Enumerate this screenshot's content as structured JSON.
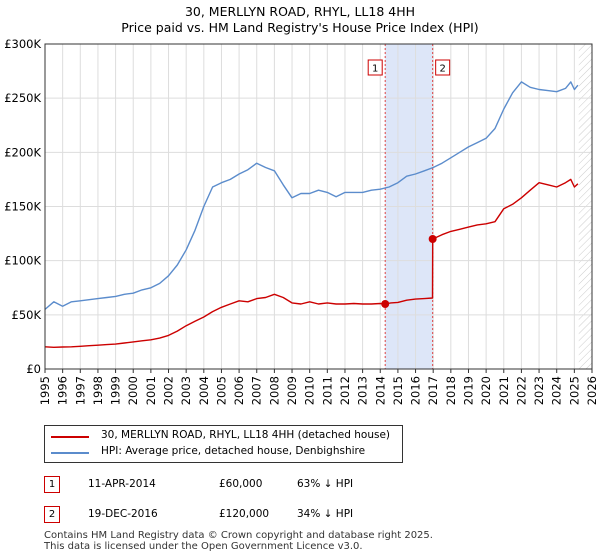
{
  "title_line1": "30, MERLLYN ROAD, RHYL, LL18 4HH",
  "title_line2": "Price paid vs. HM Land Registry's House Price Index (HPI)",
  "colors": {
    "price_paid": "#cc0000",
    "hpi": "#5b8ccc",
    "shade": "#dde6f8",
    "grid": "#dddddd"
  },
  "chart_data": {
    "type": "line",
    "ylabel_ticks": [
      "£0",
      "£50K",
      "£100K",
      "£150K",
      "£200K",
      "£250K",
      "£300K"
    ],
    "yticks": [
      0,
      50000,
      100000,
      150000,
      200000,
      250000,
      300000
    ],
    "ylim": [
      0,
      300000
    ],
    "xlim": [
      1995,
      2026
    ],
    "xticks": [
      "1995",
      "1996",
      "1997",
      "1998",
      "1999",
      "2000",
      "2001",
      "2002",
      "2003",
      "2004",
      "2005",
      "2006",
      "2007",
      "2008",
      "2009",
      "2010",
      "2011",
      "2012",
      "2013",
      "2014",
      "2015",
      "2016",
      "2017",
      "2018",
      "2019",
      "2020",
      "2021",
      "2022",
      "2023",
      "2024",
      "2025",
      "2026"
    ],
    "shaded_region": [
      2014.28,
      2016.97
    ],
    "future_hatch_from": 2025.25,
    "series": [
      {
        "name": "30, MERLLYN ROAD, RHYL, LL18 4HH (detached house)",
        "x": [
          1995.0,
          1995.5,
          1996.0,
          1996.5,
          1997.0,
          1997.5,
          1998.0,
          1998.5,
          1999.0,
          1999.5,
          2000.0,
          2000.5,
          2001.0,
          2001.5,
          2002.0,
          2002.5,
          2003.0,
          2003.5,
          2004.0,
          2004.5,
          2005.0,
          2005.5,
          2006.0,
          2006.5,
          2007.0,
          2007.5,
          2008.0,
          2008.5,
          2009.0,
          2009.5,
          2010.0,
          2010.5,
          2011.0,
          2011.5,
          2012.0,
          2012.5,
          2013.0,
          2013.5,
          2014.0,
          2014.28,
          2014.6,
          2015.0,
          2015.5,
          2016.0,
          2016.5,
          2016.96,
          2016.97,
          2017.5,
          2018.0,
          2018.5,
          2019.0,
          2019.5,
          2020.0,
          2020.5,
          2021.0,
          2021.5,
          2022.0,
          2022.5,
          2023.0,
          2023.5,
          2024.0,
          2024.5,
          2024.8,
          2025.0,
          2025.2
        ],
        "values": [
          20500,
          20000,
          20300,
          20500,
          21000,
          21500,
          22000,
          22500,
          23000,
          24000,
          25000,
          26000,
          27000,
          28500,
          31000,
          35000,
          40000,
          44000,
          48000,
          53000,
          57000,
          60000,
          63000,
          62000,
          65000,
          66000,
          69000,
          66000,
          61000,
          60000,
          62000,
          60000,
          61000,
          60000,
          60000,
          60500,
          60000,
          60000,
          60500,
          60000,
          61000,
          61500,
          63500,
          64500,
          65000,
          65500,
          120000,
          124000,
          127000,
          129000,
          131000,
          133000,
          134000,
          136000,
          148000,
          152000,
          158000,
          165000,
          172000,
          170000,
          168000,
          172000,
          175000,
          168000,
          171000
        ]
      },
      {
        "name": "HPI: Average price, detached house, Denbighshire",
        "x": [
          1995.0,
          1995.5,
          1996.0,
          1996.5,
          1997.0,
          1997.5,
          1998.0,
          1998.5,
          1999.0,
          1999.5,
          2000.0,
          2000.5,
          2001.0,
          2001.5,
          2002.0,
          2002.5,
          2003.0,
          2003.5,
          2004.0,
          2004.5,
          2005.0,
          2005.5,
          2006.0,
          2006.5,
          2007.0,
          2007.5,
          2008.0,
          2008.5,
          2009.0,
          2009.5,
          2010.0,
          2010.5,
          2011.0,
          2011.5,
          2012.0,
          2012.5,
          2013.0,
          2013.5,
          2014.0,
          2014.5,
          2015.0,
          2015.5,
          2016.0,
          2016.5,
          2017.0,
          2017.5,
          2018.0,
          2018.5,
          2019.0,
          2019.5,
          2020.0,
          2020.5,
          2021.0,
          2021.5,
          2022.0,
          2022.5,
          2023.0,
          2023.5,
          2024.0,
          2024.5,
          2024.8,
          2025.0,
          2025.2
        ],
        "values": [
          55000,
          62000,
          58000,
          62000,
          63000,
          64000,
          65000,
          66000,
          67000,
          69000,
          70000,
          73000,
          75000,
          79000,
          86000,
          96000,
          110000,
          128000,
          150000,
          168000,
          172000,
          175000,
          180000,
          184000,
          190000,
          186000,
          183000,
          170000,
          158000,
          162000,
          162000,
          165000,
          163000,
          159000,
          163000,
          163000,
          163000,
          165000,
          166000,
          168000,
          172000,
          178000,
          180000,
          183000,
          186000,
          190000,
          195000,
          200000,
          205000,
          209000,
          213000,
          222000,
          240000,
          255000,
          265000,
          260000,
          258000,
          257000,
          256000,
          259000,
          265000,
          258000,
          262000
        ]
      }
    ],
    "sale_points": [
      {
        "x": 2014.28,
        "y": 60000,
        "label": "1"
      },
      {
        "x": 2016.97,
        "y": 120000,
        "label": "2"
      }
    ]
  },
  "legend": {
    "price_paid": "30, MERLLYN ROAD, RHYL, LL18 4HH (detached house)",
    "hpi": "HPI: Average price, detached house, Denbighshire"
  },
  "transactions": [
    {
      "num": "1",
      "date": "11-APR-2014",
      "price": "£60,000",
      "delta": "63% ↓ HPI"
    },
    {
      "num": "2",
      "date": "19-DEC-2016",
      "price": "£120,000",
      "delta": "34% ↓ HPI"
    }
  ],
  "footer_line1": "Contains HM Land Registry data © Crown copyright and database right 2025.",
  "footer_line2": "This data is licensed under the Open Government Licence v3.0."
}
